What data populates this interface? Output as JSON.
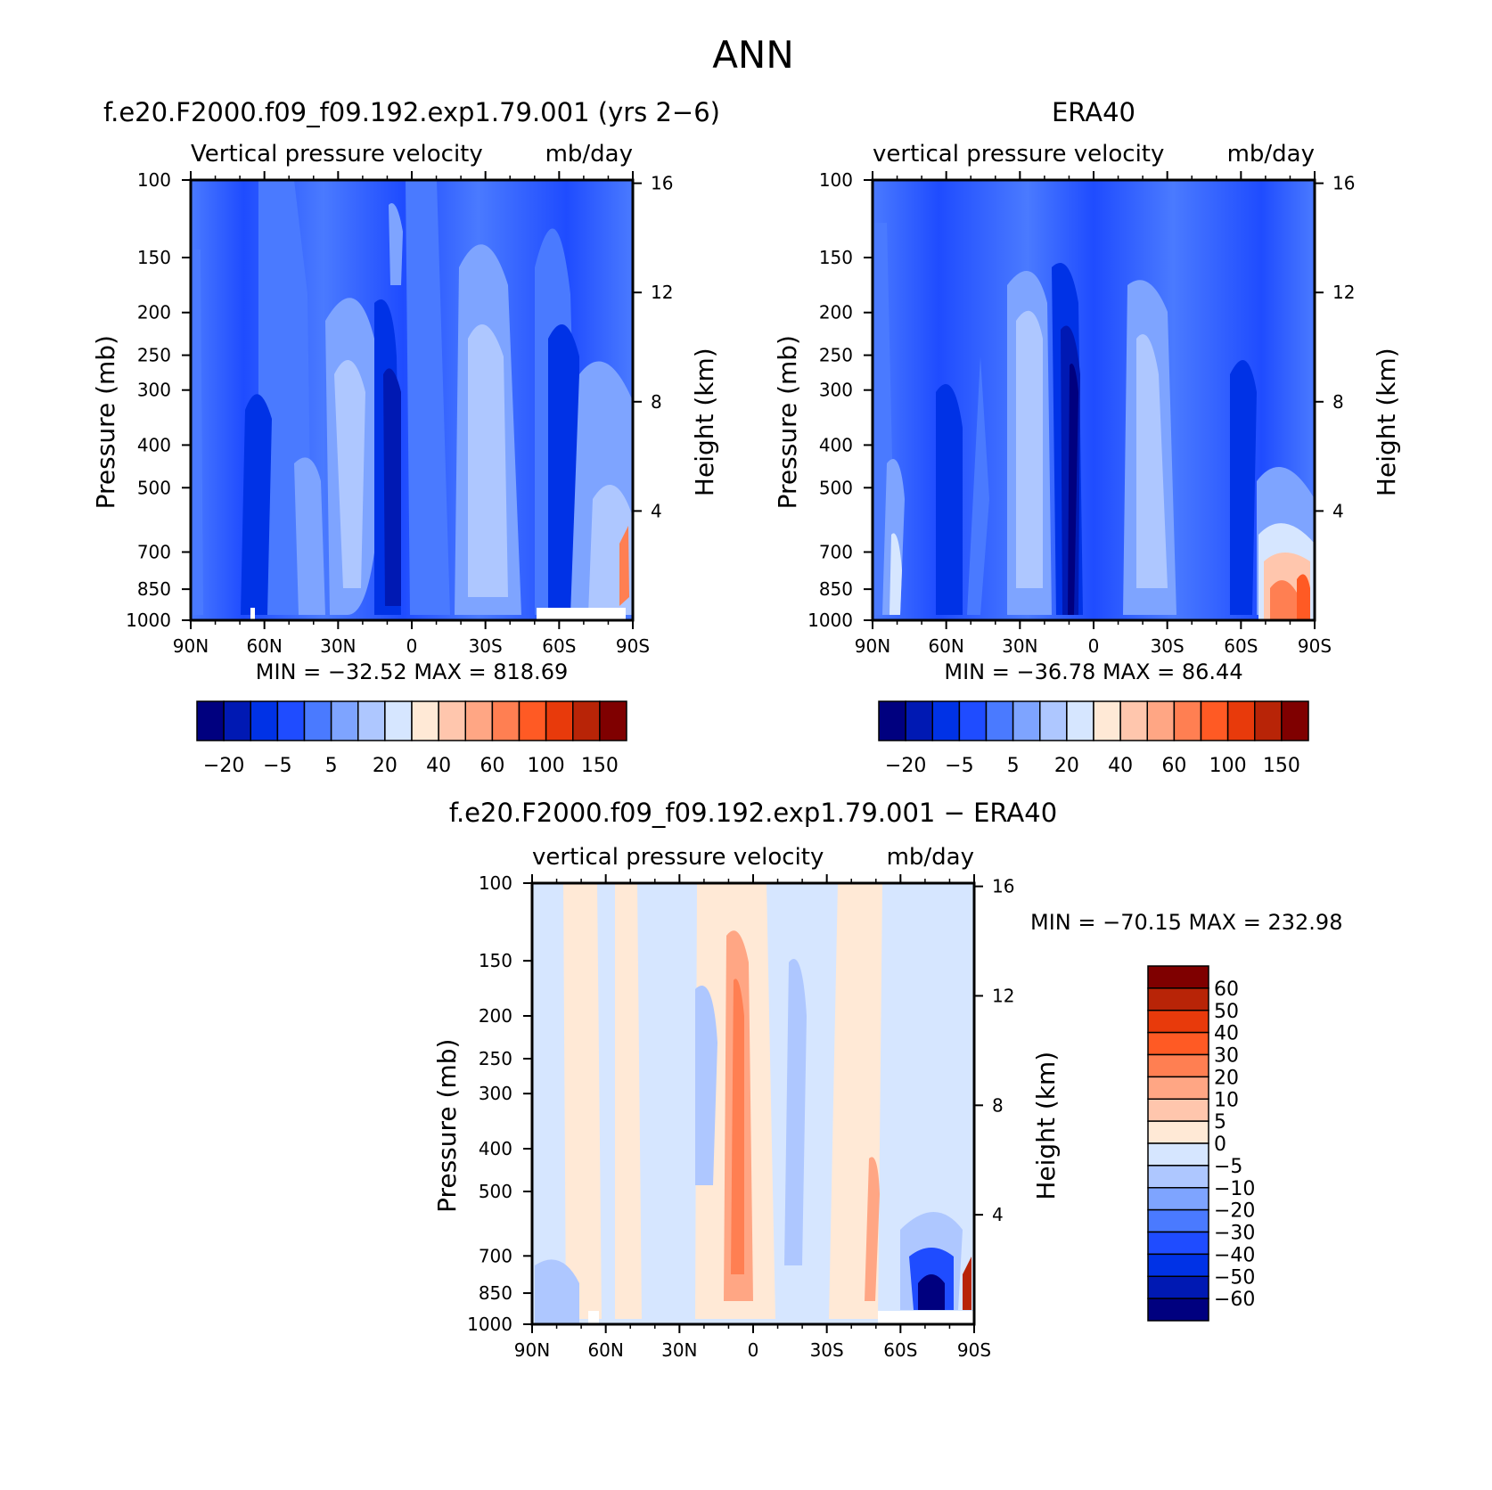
{
  "figure_title": "ANN",
  "chart_data": [
    {
      "type": "heatmap",
      "title": "f.e20.F2000.f09_f09.192.exp1.79.001 (yrs 2−6)",
      "subtitle": "Vertical pressure velocity",
      "units": "mb/day",
      "xlabel": "",
      "ylabel": "Pressure (mb)",
      "ylabel_right": "Height (km)",
      "x_ticks": [
        "90N",
        "60N",
        "30N",
        "0",
        "30S",
        "60S",
        "90S"
      ],
      "y_ticks": [
        100,
        150,
        200,
        250,
        300,
        400,
        500,
        700,
        850,
        1000
      ],
      "y_ticks_right": [
        4,
        8,
        12,
        16
      ],
      "ylim": [
        1000,
        100
      ],
      "stats": "MIN = −32.52   MAX = 818.69",
      "min": -32.52,
      "max": 818.69,
      "colorbar_labels": [
        "−20",
        "−5",
        "5",
        "20",
        "40",
        "60",
        "100",
        "150"
      ],
      "colorbar_colors": [
        "#00007f",
        "#0019b3",
        "#0032e6",
        "#1f4cff",
        "#4a7aff",
        "#7ea4ff",
        "#aec7ff",
        "#d6e6ff",
        "#ffe9d6",
        "#ffc6ad",
        "#ffa684",
        "#ff7f52",
        "#ff5a24",
        "#e83a0b",
        "#b82407",
        "#7f0000"
      ]
    },
    {
      "type": "heatmap",
      "title": "ERA40",
      "subtitle": "vertical pressure velocity",
      "units": "mb/day",
      "xlabel": "",
      "ylabel": "Pressure (mb)",
      "ylabel_right": "Height (km)",
      "x_ticks": [
        "90N",
        "60N",
        "30N",
        "0",
        "30S",
        "60S",
        "90S"
      ],
      "y_ticks": [
        100,
        150,
        200,
        250,
        300,
        400,
        500,
        700,
        850,
        1000
      ],
      "y_ticks_right": [
        4,
        8,
        12,
        16
      ],
      "ylim": [
        1000,
        100
      ],
      "stats": "MIN = −36.78   MAX =   86.44",
      "min": -36.78,
      "max": 86.44,
      "colorbar_labels": [
        "−20",
        "−5",
        "5",
        "20",
        "40",
        "60",
        "100",
        "150"
      ],
      "colorbar_colors": [
        "#00007f",
        "#0019b3",
        "#0032e6",
        "#1f4cff",
        "#4a7aff",
        "#7ea4ff",
        "#aec7ff",
        "#d6e6ff",
        "#ffe9d6",
        "#ffc6ad",
        "#ffa684",
        "#ff7f52",
        "#ff5a24",
        "#e83a0b",
        "#b82407",
        "#7f0000"
      ]
    },
    {
      "type": "heatmap",
      "title": "f.e20.F2000.f09_f09.192.exp1.79.001 − ERA40",
      "subtitle": "vertical pressure velocity",
      "units": "mb/day",
      "xlabel": "",
      "ylabel": "Pressure (mb)",
      "ylabel_right": "Height (km)",
      "x_ticks": [
        "90N",
        "60N",
        "30N",
        "0",
        "30S",
        "60S",
        "90S"
      ],
      "y_ticks": [
        100,
        150,
        200,
        250,
        300,
        400,
        500,
        700,
        850,
        1000
      ],
      "y_ticks_right": [
        4,
        8,
        12,
        16
      ],
      "ylim": [
        1000,
        100
      ],
      "stats": "MIN = −70.15   MAX = 232.98",
      "min": -70.15,
      "max": 232.98,
      "colorbar_labels": [
        "60",
        "50",
        "40",
        "30",
        "20",
        "10",
        "5",
        "0",
        "−5",
        "−10",
        "−20",
        "−30",
        "−40",
        "−50",
        "−60"
      ],
      "colorbar_colors": [
        "#7f0000",
        "#b82407",
        "#e83a0b",
        "#ff5a24",
        "#ff7f52",
        "#ffa684",
        "#ffc6ad",
        "#ffe9d6",
        "#d6e6ff",
        "#aec7ff",
        "#7ea4ff",
        "#4a7aff",
        "#1f4cff",
        "#0032e6",
        "#0019b3",
        "#00007f"
      ]
    }
  ]
}
